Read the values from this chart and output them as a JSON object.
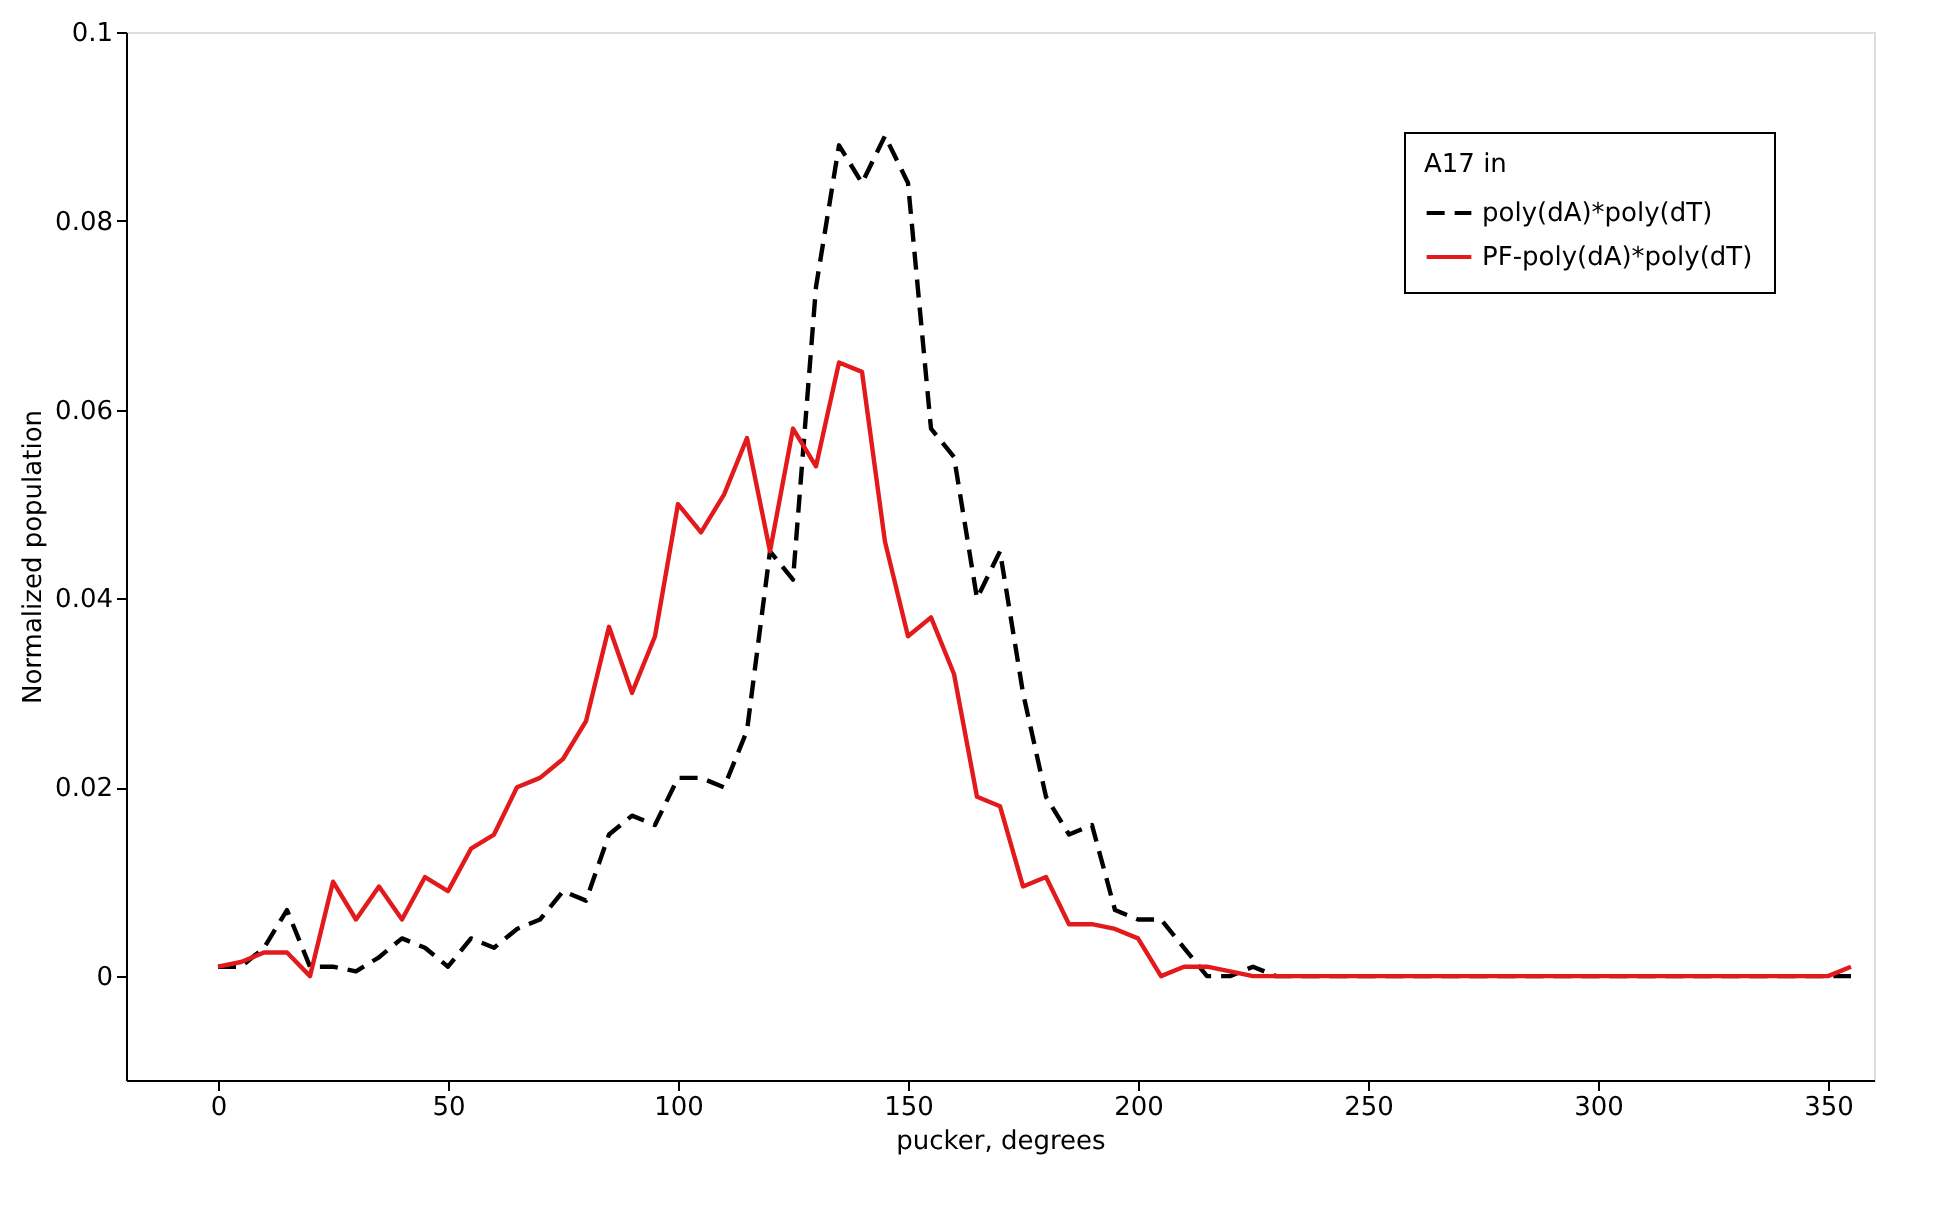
{
  "chart_data": {
    "type": "line",
    "xlabel": "pucker, degrees",
    "ylabel": "Normalized population",
    "legend_title": "A17 in",
    "legend": "top right",
    "grid": false,
    "marker": "none",
    "xlim": [
      -20,
      360
    ],
    "xticks": [
      0,
      50,
      100,
      150,
      200,
      250,
      300,
      350
    ],
    "ylim": [
      -0.011,
      0.1
    ],
    "yticks": [
      0,
      0.02,
      0.04,
      0.06,
      0.08,
      0.1
    ],
    "x": [
      0,
      5,
      10,
      15,
      20,
      25,
      30,
      35,
      40,
      45,
      50,
      55,
      60,
      65,
      70,
      75,
      80,
      85,
      90,
      95,
      100,
      105,
      110,
      115,
      120,
      125,
      130,
      135,
      140,
      145,
      150,
      155,
      160,
      165,
      170,
      175,
      180,
      185,
      190,
      195,
      200,
      205,
      210,
      215,
      220,
      225,
      230,
      235,
      240,
      245,
      250,
      255,
      260,
      265,
      270,
      275,
      280,
      285,
      290,
      295,
      300,
      305,
      310,
      315,
      320,
      325,
      330,
      335,
      340,
      345,
      350,
      355
    ],
    "series": [
      {
        "name": "poly(dA)*poly(dT)",
        "color": "#000000",
        "line_style": "dashed",
        "values": [
          0.001,
          0.001,
          0.003,
          0.007,
          0.001,
          0.001,
          0.0005,
          0.002,
          0.004,
          0.003,
          0.001,
          0.004,
          0.003,
          0.005,
          0.006,
          0.009,
          0.008,
          0.015,
          0.017,
          0.016,
          0.021,
          0.021,
          0.02,
          0.026,
          0.045,
          0.042,
          0.073,
          0.088,
          0.084,
          0.089,
          0.084,
          0.058,
          0.055,
          0.04,
          0.045,
          0.03,
          0.019,
          0.015,
          0.016,
          0.007,
          0.006,
          0.006,
          0.003,
          0.0,
          0.0,
          0.001,
          0,
          0,
          0,
          0,
          0,
          0,
          0,
          0,
          0,
          0,
          0,
          0,
          0,
          0,
          0,
          0,
          0,
          0,
          0,
          0,
          0,
          0,
          0,
          0,
          0,
          0
        ]
      },
      {
        "name": "PF-poly(dA)*poly(dT)",
        "color": "#e31a1c",
        "line_style": "solid",
        "values": [
          0.001,
          0.0015,
          0.0025,
          0.0025,
          0.0,
          0.01,
          0.006,
          0.0095,
          0.006,
          0.0105,
          0.009,
          0.0135,
          0.015,
          0.02,
          0.021,
          0.023,
          0.027,
          0.037,
          0.03,
          0.036,
          0.05,
          0.047,
          0.051,
          0.057,
          0.045,
          0.058,
          0.054,
          0.065,
          0.064,
          0.046,
          0.036,
          0.038,
          0.032,
          0.019,
          0.018,
          0.0095,
          0.0105,
          0.0055,
          0.0055,
          0.005,
          0.004,
          0.0,
          0.001,
          0.001,
          0.0005,
          0,
          0,
          0,
          0,
          0,
          0,
          0,
          0,
          0,
          0,
          0,
          0,
          0,
          0,
          0,
          0,
          0,
          0,
          0,
          0,
          0,
          0,
          0,
          0,
          0,
          0,
          0.001
        ]
      }
    ]
  }
}
